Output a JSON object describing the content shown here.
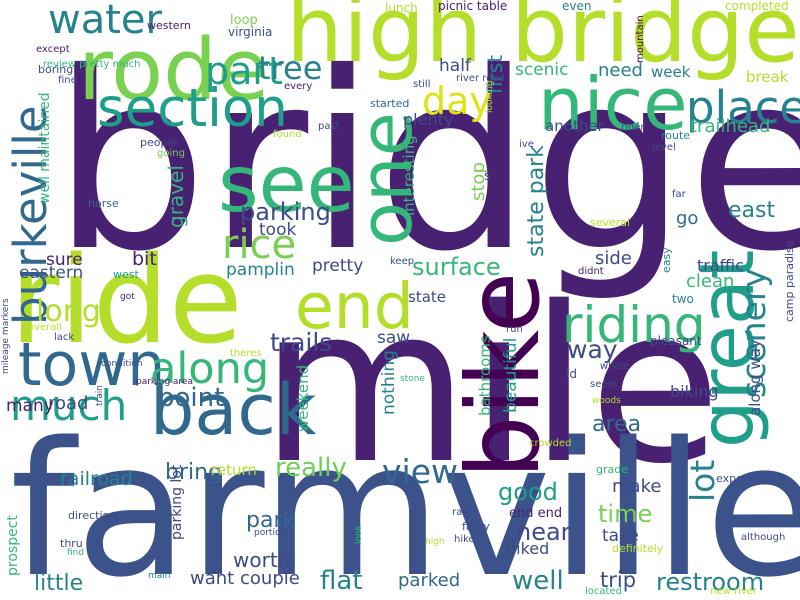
{
  "words": [
    {
      "text": "bridge",
      "color": "#482173"
    },
    {
      "text": "mile",
      "color": "#482173"
    },
    {
      "text": "farmville",
      "color": "#3b528b"
    },
    {
      "text": "ride",
      "color": "#b5de2b"
    },
    {
      "text": "high bridge",
      "color": "#b5de2b"
    },
    {
      "text": "rode",
      "color": "#7ad151"
    },
    {
      "text": "nice",
      "color": "#35b779"
    },
    {
      "text": "bike",
      "color": "#440154"
    },
    {
      "text": "back",
      "color": "#31688e"
    },
    {
      "text": "town",
      "color": "#31688e"
    },
    {
      "text": "great",
      "color": "#1f9e89"
    },
    {
      "text": "end",
      "color": "#b5de2b"
    },
    {
      "text": "see",
      "color": "#35b779"
    },
    {
      "text": "one",
      "color": "#35b779"
    },
    {
      "text": "section",
      "color": "#1f9e89"
    },
    {
      "text": "burkeville",
      "color": "#31688e"
    },
    {
      "text": "along",
      "color": "#35b779"
    },
    {
      "text": "much",
      "color": "#1f9e89"
    },
    {
      "text": "riding",
      "color": "#35b779"
    },
    {
      "text": "place",
      "color": "#26828e"
    },
    {
      "text": "water",
      "color": "#26828e"
    },
    {
      "text": "part",
      "color": "#1f9e89"
    },
    {
      "text": "rice",
      "color": "#7ad151"
    },
    {
      "text": "day",
      "color": "#dde318"
    },
    {
      "text": "tree",
      "color": "#26828e"
    },
    {
      "text": "scenery",
      "color": "#26828e"
    },
    {
      "text": "view",
      "color": "#31688e"
    },
    {
      "text": "long",
      "color": "#b5de2b"
    },
    {
      "text": "lot",
      "color": "#26828e"
    },
    {
      "text": "parking",
      "color": "#3e4a89"
    },
    {
      "text": "surface",
      "color": "#35b779"
    },
    {
      "text": "point",
      "color": "#31688e"
    },
    {
      "text": "trails",
      "color": "#3e4a89"
    },
    {
      "text": "really",
      "color": "#6ece58"
    },
    {
      "text": "east",
      "color": "#26828e"
    },
    {
      "text": "good",
      "color": "#1f9e89"
    },
    {
      "text": "time",
      "color": "#7ad151"
    },
    {
      "text": "well",
      "color": "#26828e"
    },
    {
      "text": "little",
      "color": "#26828e"
    },
    {
      "text": "area",
      "color": "#31688e"
    },
    {
      "text": "way",
      "color": "#3e4a89"
    },
    {
      "text": "flat",
      "color": "#26828e"
    },
    {
      "text": "restroom",
      "color": "#26828e"
    },
    {
      "text": "railroad",
      "color": "#26828e"
    },
    {
      "text": "bring",
      "color": "#31688e"
    },
    {
      "text": "near",
      "color": "#3e4a89"
    },
    {
      "text": "trip",
      "color": "#3e4a89"
    },
    {
      "text": "park",
      "color": "#31688e"
    },
    {
      "text": "worth",
      "color": "#3e4a89"
    },
    {
      "text": "couple",
      "color": "#3e4a89"
    },
    {
      "text": "parked",
      "color": "#31688e"
    },
    {
      "text": "want",
      "color": "#3e4a89"
    },
    {
      "text": "road",
      "color": "#3e4a89"
    },
    {
      "text": "many",
      "color": "#482173"
    },
    {
      "text": "eastern",
      "color": "#3b528b"
    },
    {
      "text": "sure",
      "color": "#482173"
    },
    {
      "text": "bit",
      "color": "#482173"
    },
    {
      "text": "pretty",
      "color": "#3e4a89"
    },
    {
      "text": "pamplin",
      "color": "#26828e"
    },
    {
      "text": "took",
      "color": "#3e4a89"
    },
    {
      "text": "gravel",
      "color": "#35b779"
    },
    {
      "text": "state park",
      "color": "#26828e"
    },
    {
      "text": "first",
      "color": "#26828e"
    },
    {
      "text": "half",
      "color": "#3e4a89"
    },
    {
      "text": "scenic",
      "color": "#35b779"
    },
    {
      "text": "need",
      "color": "#26828e"
    },
    {
      "text": "week",
      "color": "#26828e"
    },
    {
      "text": "plenty",
      "color": "#3e4a89"
    },
    {
      "text": "another",
      "color": "#3e4a89"
    },
    {
      "text": "trailhead",
      "color": "#35b779"
    },
    {
      "text": "stop",
      "color": "#7ad151"
    },
    {
      "text": "go",
      "color": "#31688e"
    },
    {
      "text": "side",
      "color": "#3e4a89"
    },
    {
      "text": "traffic",
      "color": "#3e4a89"
    },
    {
      "text": "clean",
      "color": "#35b779"
    },
    {
      "text": "make",
      "color": "#3e4a89"
    },
    {
      "text": "take",
      "color": "#3e4a89"
    },
    {
      "text": "biked",
      "color": "#3e4a89"
    },
    {
      "text": "biking",
      "color": "#3e4a89"
    },
    {
      "text": "along way",
      "color": "#3e4a89"
    },
    {
      "text": "beautiful",
      "color": "#1f9e89"
    },
    {
      "text": "bathrooms",
      "color": "#35b779"
    },
    {
      "text": "nothing",
      "color": "#26828e"
    },
    {
      "text": "weekend",
      "color": "#35b779"
    },
    {
      "text": "saw",
      "color": "#3e4a89"
    },
    {
      "text": "state",
      "color": "#3e4a89"
    },
    {
      "text": "interesting",
      "color": "#35b779"
    },
    {
      "text": "well maintained",
      "color": "#35b779"
    },
    {
      "text": "parking lot",
      "color": "#3e4a89"
    },
    {
      "text": "return",
      "color": "#b5de2b"
    },
    {
      "text": "prospect",
      "color": "#35b779"
    },
    {
      "text": "break",
      "color": "#b5de2b"
    },
    {
      "text": "end end",
      "color": "#482173"
    },
    {
      "text": "loop",
      "color": "#7ad151"
    },
    {
      "text": "virginia",
      "color": "#3e4a89"
    },
    {
      "text": "western",
      "color": "#482173"
    },
    {
      "text": "lunch",
      "color": "#b5de2b"
    },
    {
      "text": "picnic table",
      "color": "#482173"
    },
    {
      "text": "even",
      "color": "#26828e"
    },
    {
      "text": "completed",
      "color": "#b5de2b"
    },
    {
      "text": "mountain",
      "color": "#440154"
    },
    {
      "text": "except",
      "color": "#482173"
    },
    {
      "text": "review pretty much",
      "color": "#35b779"
    },
    {
      "text": "boring",
      "color": "#3e4a89"
    },
    {
      "text": "fine",
      "color": "#3e4a89"
    },
    {
      "text": "every",
      "color": "#482173"
    },
    {
      "text": "river road",
      "color": "#3e4a89"
    },
    {
      "text": "still",
      "color": "#3e4a89"
    },
    {
      "text": "looking",
      "color": "#b5de2b"
    },
    {
      "text": "started",
      "color": "#31688e"
    },
    {
      "text": "past",
      "color": "#3e4a89"
    },
    {
      "text": "rider",
      "color": "#3e4a89"
    },
    {
      "text": "ive",
      "color": "#3e4a89"
    },
    {
      "text": "route",
      "color": "#26828e"
    },
    {
      "text": "level",
      "color": "#3e4a89"
    },
    {
      "text": "found",
      "color": "#b5de2b"
    },
    {
      "text": "people",
      "color": "#3e4a89"
    },
    {
      "text": "going",
      "color": "#6ece58"
    },
    {
      "text": "horse",
      "color": "#31688e"
    },
    {
      "text": "far",
      "color": "#3e4a89"
    },
    {
      "text": "s",
      "color": "#3e4a89"
    },
    {
      "text": "several",
      "color": "#b5de2b"
    },
    {
      "text": "easy",
      "color": "#26828e"
    },
    {
      "text": "camp paradise",
      "color": "#3e4a89"
    },
    {
      "text": "mileage markers",
      "color": "#3e4a89"
    },
    {
      "text": "west",
      "color": "#1f9e89"
    },
    {
      "text": "keep",
      "color": "#3e4a89"
    },
    {
      "text": "didnt",
      "color": "#482173"
    },
    {
      "text": "got",
      "color": "#482173"
    },
    {
      "text": "overall",
      "color": "#b5de2b"
    },
    {
      "text": "lack",
      "color": "#3e4a89"
    },
    {
      "text": "two",
      "color": "#26828e"
    },
    {
      "text": "run",
      "color": "#3e4a89"
    },
    {
      "text": "theres",
      "color": "#b5de2b"
    },
    {
      "text": "id",
      "color": "#3e4a89"
    },
    {
      "text": "pleasant",
      "color": "#3e4a89"
    },
    {
      "text": "whole",
      "color": "#3e4a89"
    },
    {
      "text": "seem",
      "color": "#3e4a89"
    },
    {
      "text": "stone",
      "color": "#35b779"
    },
    {
      "text": "woods",
      "color": "#b5de2b"
    },
    {
      "text": "condition",
      "color": "#3e4a89"
    },
    {
      "text": "train",
      "color": "#3e4a89"
    },
    {
      "text": "parking area",
      "color": "#482173"
    },
    {
      "text": "crowded",
      "color": "#b5de2b"
    },
    {
      "text": "grade",
      "color": "#35b779"
    },
    {
      "text": "experience",
      "color": "#3e4a89"
    },
    {
      "text": "direction",
      "color": "#3e4a89"
    },
    {
      "text": "rail",
      "color": "#3e4a89"
    },
    {
      "text": "fairly",
      "color": "#3e4a89"
    },
    {
      "text": "thru",
      "color": "#3e4a89"
    },
    {
      "text": "portion",
      "color": "#3e4a89"
    },
    {
      "text": "find",
      "color": "#35b779"
    },
    {
      "text": "look",
      "color": "#35b779"
    },
    {
      "text": "high",
      "color": "#b5de2b"
    },
    {
      "text": "hike",
      "color": "#3e4a89"
    },
    {
      "text": "definitely",
      "color": "#b5de2b"
    },
    {
      "text": "although",
      "color": "#3e4a89"
    },
    {
      "text": "main",
      "color": "#26828e"
    },
    {
      "text": "located",
      "color": "#35b779"
    },
    {
      "text": "new river",
      "color": "#b5de2b"
    }
  ]
}
